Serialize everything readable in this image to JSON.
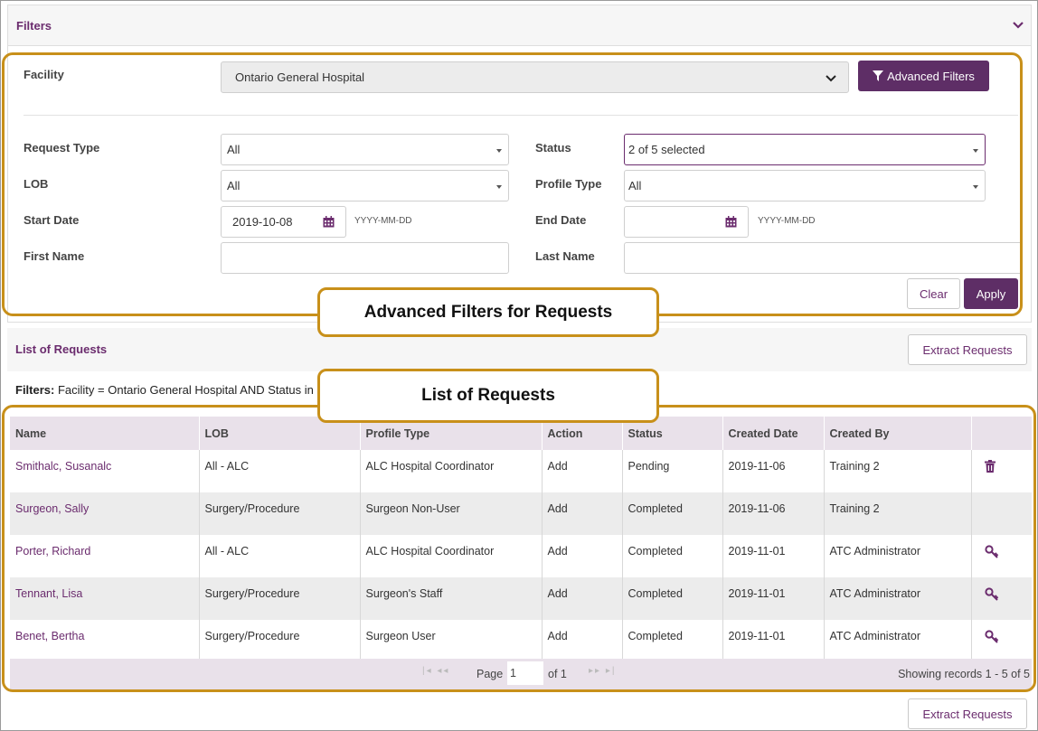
{
  "filters": {
    "title": "Filters"
  },
  "facility": {
    "label": "Facility",
    "value": "Ontario General Hospital"
  },
  "advanced_button": "Advanced Filters",
  "fields": {
    "request_type": {
      "label": "Request Type",
      "value": "All"
    },
    "status": {
      "label": "Status",
      "value": "2 of 5 selected"
    },
    "lob": {
      "label": "LOB",
      "value": "All"
    },
    "profile_type": {
      "label": "Profile Type",
      "value": "All"
    },
    "start_date": {
      "label": "Start Date",
      "value": "2019-10-08",
      "hint": "YYYY-MM-DD"
    },
    "end_date": {
      "label": "End Date",
      "value": "",
      "hint": "YYYY-MM-DD"
    },
    "first_name": {
      "label": "First Name",
      "value": ""
    },
    "last_name": {
      "label": "Last Name",
      "value": ""
    }
  },
  "actions": {
    "clear": "Clear",
    "apply": "Apply"
  },
  "callouts": {
    "advanced": "Advanced Filters for Requests",
    "list": "List of Requests"
  },
  "list": {
    "title": "List of Requests",
    "extract": "Extract Requests",
    "filters_label": "Filters:",
    "filters_value": "Facility = Ontario General Hospital AND Status in"
  },
  "table": {
    "headers": [
      "Name",
      "LOB",
      "Profile Type",
      "Action",
      "Status",
      "Created Date",
      "Created By",
      ""
    ],
    "rows": [
      [
        "Smithalc, Susanalc",
        "All - ALC",
        "ALC Hospital Coordinator",
        "Add",
        "Pending",
        "2019-11-06",
        "Training 2"
      ],
      [
        "Surgeon, Sally",
        "Surgery/Procedure",
        "Surgeon Non-User",
        "Add",
        "Completed",
        "2019-11-06",
        "Training 2"
      ],
      [
        "Porter, Richard",
        "All - ALC",
        "ALC Hospital Coordinator",
        "Add",
        "Completed",
        "2019-11-01",
        "ATC Administrator"
      ],
      [
        "Tennant, Lisa",
        "Surgery/Procedure",
        "Surgeon's Staff",
        "Add",
        "Completed",
        "2019-11-01",
        "ATC Administrator"
      ],
      [
        "Benet, Bertha",
        "Surgery/Procedure",
        "Surgeon User",
        "Add",
        "Completed",
        "2019-11-01",
        "ATC Administrator"
      ]
    ],
    "row_icons": [
      "trash-icon",
      "",
      "key-icon",
      "key-icon",
      "key-icon"
    ]
  },
  "pager": {
    "page_label": "Page",
    "page_value": "1",
    "of": "of 1",
    "showing": "Showing records 1 - 5 of 5"
  },
  "colors": {
    "accent": "#6b2c6e",
    "button": "#5e2e66",
    "callout": "#c8901a",
    "header_bg": "#e9e1ea"
  }
}
